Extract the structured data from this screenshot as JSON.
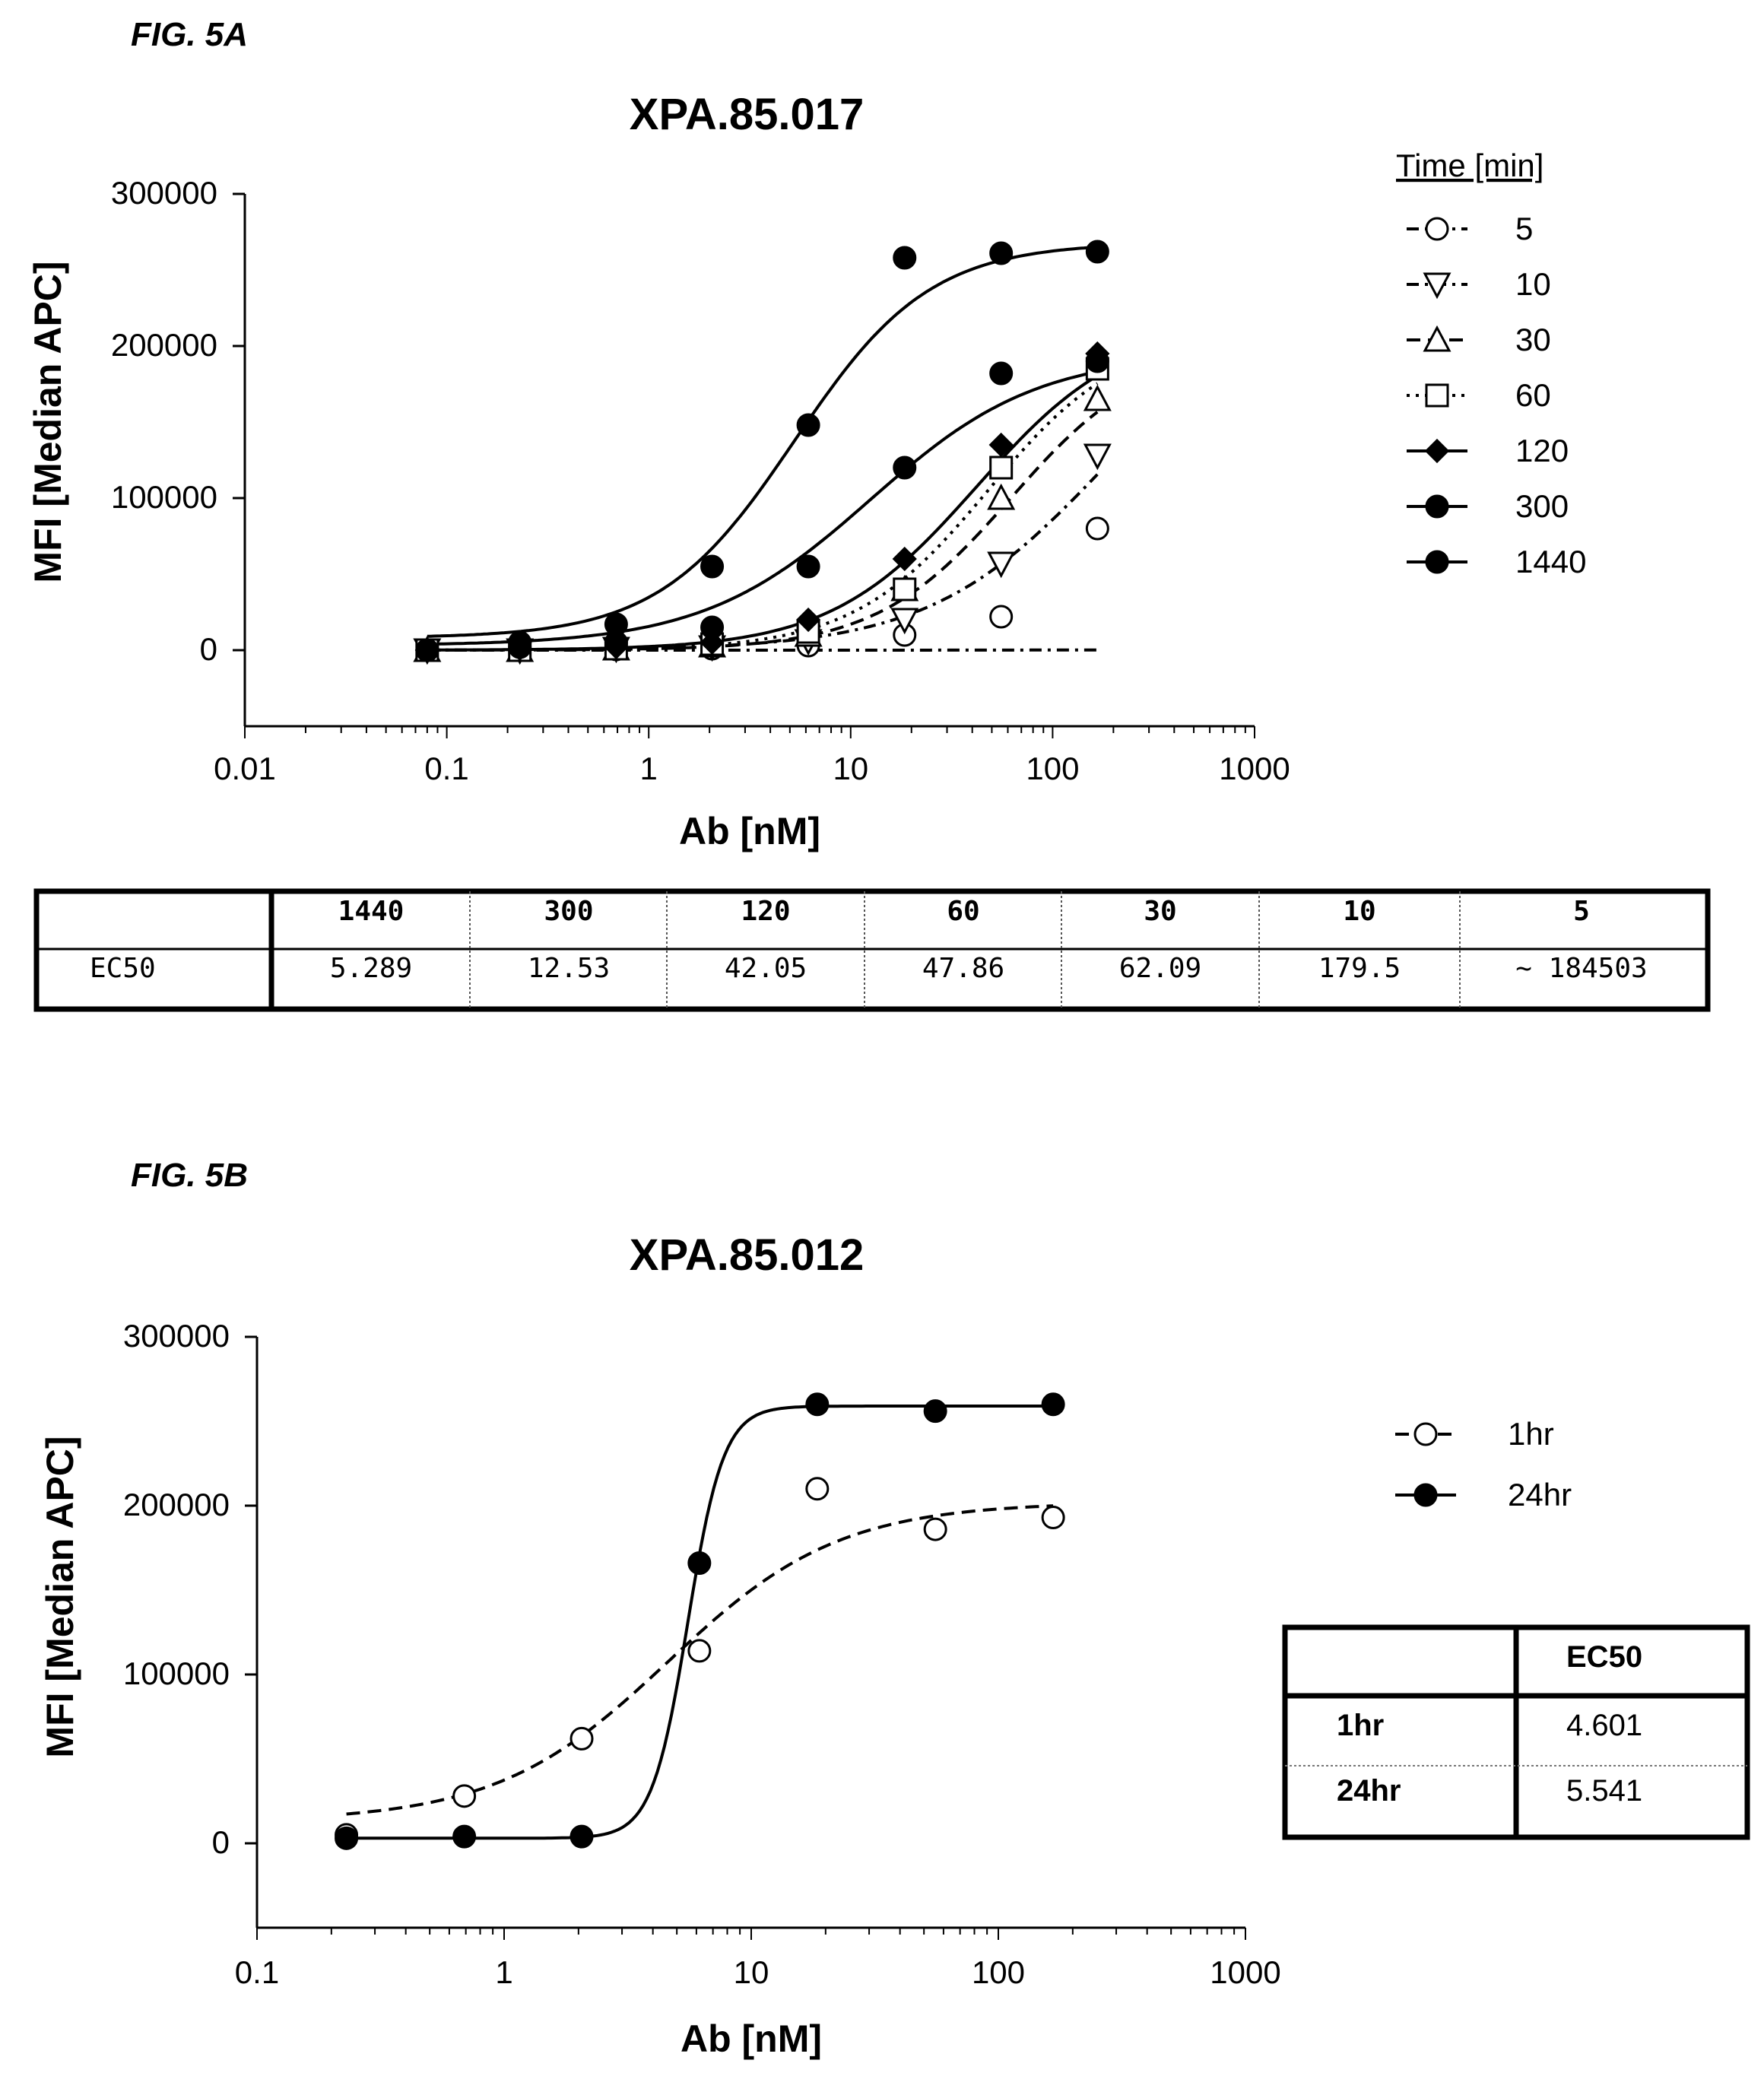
{
  "figures": [
    {
      "label": "FIG. 5A"
    },
    {
      "label": "FIG. 5B"
    }
  ],
  "chart_data": [
    {
      "type": "scatter",
      "title": "XPA.85.017",
      "xlabel": "Ab [nM]",
      "ylabel": "MFI [Median APC]",
      "xscale": "log",
      "xlim": [
        0.01,
        1000
      ],
      "ylim": [
        -50000,
        300000
      ],
      "x_ticks": [
        "0.01",
        "0.1",
        "1",
        "10",
        "100",
        "1000"
      ],
      "y_ticks": [
        "300000",
        "200000",
        "100000",
        "0"
      ],
      "legend_title": "Time [min]",
      "legend_position": "right",
      "grid": false,
      "series": [
        {
          "name": "5",
          "marker": "circle-open",
          "line": "dashdot",
          "fit": {
            "bottom": 0,
            "top": 180000,
            "ec50": 184503,
            "hill": 1.0
          },
          "x": [
            0.08,
            0.23,
            0.69,
            2.06,
            6.17,
            18.5,
            55.6,
            166.7
          ],
          "y": [
            0,
            0,
            500,
            1000,
            3000,
            10000,
            22000,
            80000
          ]
        },
        {
          "name": "10",
          "marker": "triangle-down-open",
          "line": "dashdot",
          "fit": {
            "bottom": 0,
            "top": 240000,
            "ec50": 179.5,
            "hill": 1.0
          },
          "x": [
            0.08,
            0.23,
            0.69,
            2.06,
            6.17,
            18.5,
            55.6,
            166.7
          ],
          "y": [
            0,
            0,
            1000,
            2000,
            6000,
            20000,
            57000,
            128000
          ]
        },
        {
          "name": "30",
          "marker": "triangle-up-open",
          "line": "dashed",
          "fit": {
            "bottom": 0,
            "top": 200000,
            "ec50": 62.09,
            "hill": 1.3
          },
          "x": [
            0.08,
            0.23,
            0.69,
            2.06,
            6.17,
            18.5,
            55.6,
            166.7
          ],
          "y": [
            0,
            0,
            1000,
            3000,
            10000,
            40000,
            100000,
            165000
          ]
        },
        {
          "name": "60",
          "marker": "square-open",
          "line": "dotted",
          "fit": {
            "bottom": 0,
            "top": 210000,
            "ec50": 47.86,
            "hill": 1.3
          },
          "x": [
            0.08,
            0.23,
            0.69,
            2.06,
            6.17,
            18.5,
            55.6,
            166.7
          ],
          "y": [
            0,
            0,
            1000,
            4000,
            12000,
            40000,
            120000,
            185000
          ]
        },
        {
          "name": "120",
          "marker": "diamond-filled",
          "line": "solid",
          "fit": {
            "bottom": 0,
            "top": 215000,
            "ec50": 42.05,
            "hill": 1.2
          },
          "x": [
            0.08,
            0.23,
            0.69,
            2.06,
            6.17,
            18.5,
            55.6,
            166.7
          ],
          "y": [
            0,
            1000,
            2000,
            5000,
            20000,
            60000,
            135000,
            195000
          ]
        },
        {
          "name": "300",
          "marker": "circle-filled",
          "line": "solid",
          "fit": {
            "bottom": 3000,
            "top": 195000,
            "ec50": 12.53,
            "hill": 1.05
          },
          "x": [
            0.08,
            0.23,
            0.69,
            2.06,
            6.17,
            18.5,
            55.6,
            166.7
          ],
          "y": [
            0,
            2000,
            5000,
            15000,
            55000,
            120000,
            182000,
            190000
          ]
        },
        {
          "name": "1440",
          "marker": "circle-filled",
          "line": "solid",
          "fit": {
            "bottom": 8000,
            "top": 268000,
            "ec50": 5.289,
            "hill": 1.3
          },
          "x": [
            0.08,
            0.23,
            0.69,
            2.06,
            6.17,
            18.5,
            55.6,
            166.7
          ],
          "y": [
            0,
            5000,
            17000,
            55000,
            148000,
            258000,
            261000,
            262000
          ]
        }
      ],
      "table": {
        "corner": "",
        "headers": [
          "1440",
          "300",
          "120",
          "60",
          "30",
          "10",
          "5"
        ],
        "row_label": "EC50",
        "values": [
          "5.289",
          "12.53",
          "42.05",
          "47.86",
          "62.09",
          "179.5",
          "~ 184503"
        ]
      }
    },
    {
      "type": "scatter",
      "title": "XPA.85.012",
      "xlabel": "Ab [nM]",
      "ylabel": "MFI [Median APC]",
      "xscale": "log",
      "xlim": [
        0.1,
        1000
      ],
      "ylim": [
        -50000,
        300000
      ],
      "x_ticks": [
        "0.1",
        "1",
        "10",
        "100",
        "1000"
      ],
      "y_ticks": [
        "300000",
        "200000",
        "100000",
        "0"
      ],
      "legend_position": "right",
      "grid": false,
      "series": [
        {
          "name": "1hr",
          "marker": "circle-open",
          "line": "dashed",
          "fit": {
            "bottom": 13000,
            "top": 202000,
            "ec50": 4.601,
            "hill": 1.25
          },
          "x": [
            0.23,
            0.69,
            2.06,
            6.17,
            18.5,
            55.6,
            166.7
          ],
          "y": [
            5000,
            28000,
            62000,
            114000,
            210000,
            186000,
            193000
          ]
        },
        {
          "name": "24hr",
          "marker": "circle-filled",
          "line": "solid",
          "fit": {
            "bottom": 3000,
            "top": 259000,
            "ec50": 5.541,
            "hill": 6
          },
          "x": [
            0.23,
            0.69,
            2.06,
            6.17,
            18.5,
            55.6,
            166.7
          ],
          "y": [
            3000,
            4000,
            4000,
            166000,
            260000,
            256000,
            260000
          ]
        }
      ],
      "table": {
        "corner": "",
        "column_header": "EC50",
        "rows": [
          {
            "label": "1hr",
            "value": "4.601"
          },
          {
            "label": "24hr",
            "value": "5.541"
          }
        ]
      }
    }
  ]
}
